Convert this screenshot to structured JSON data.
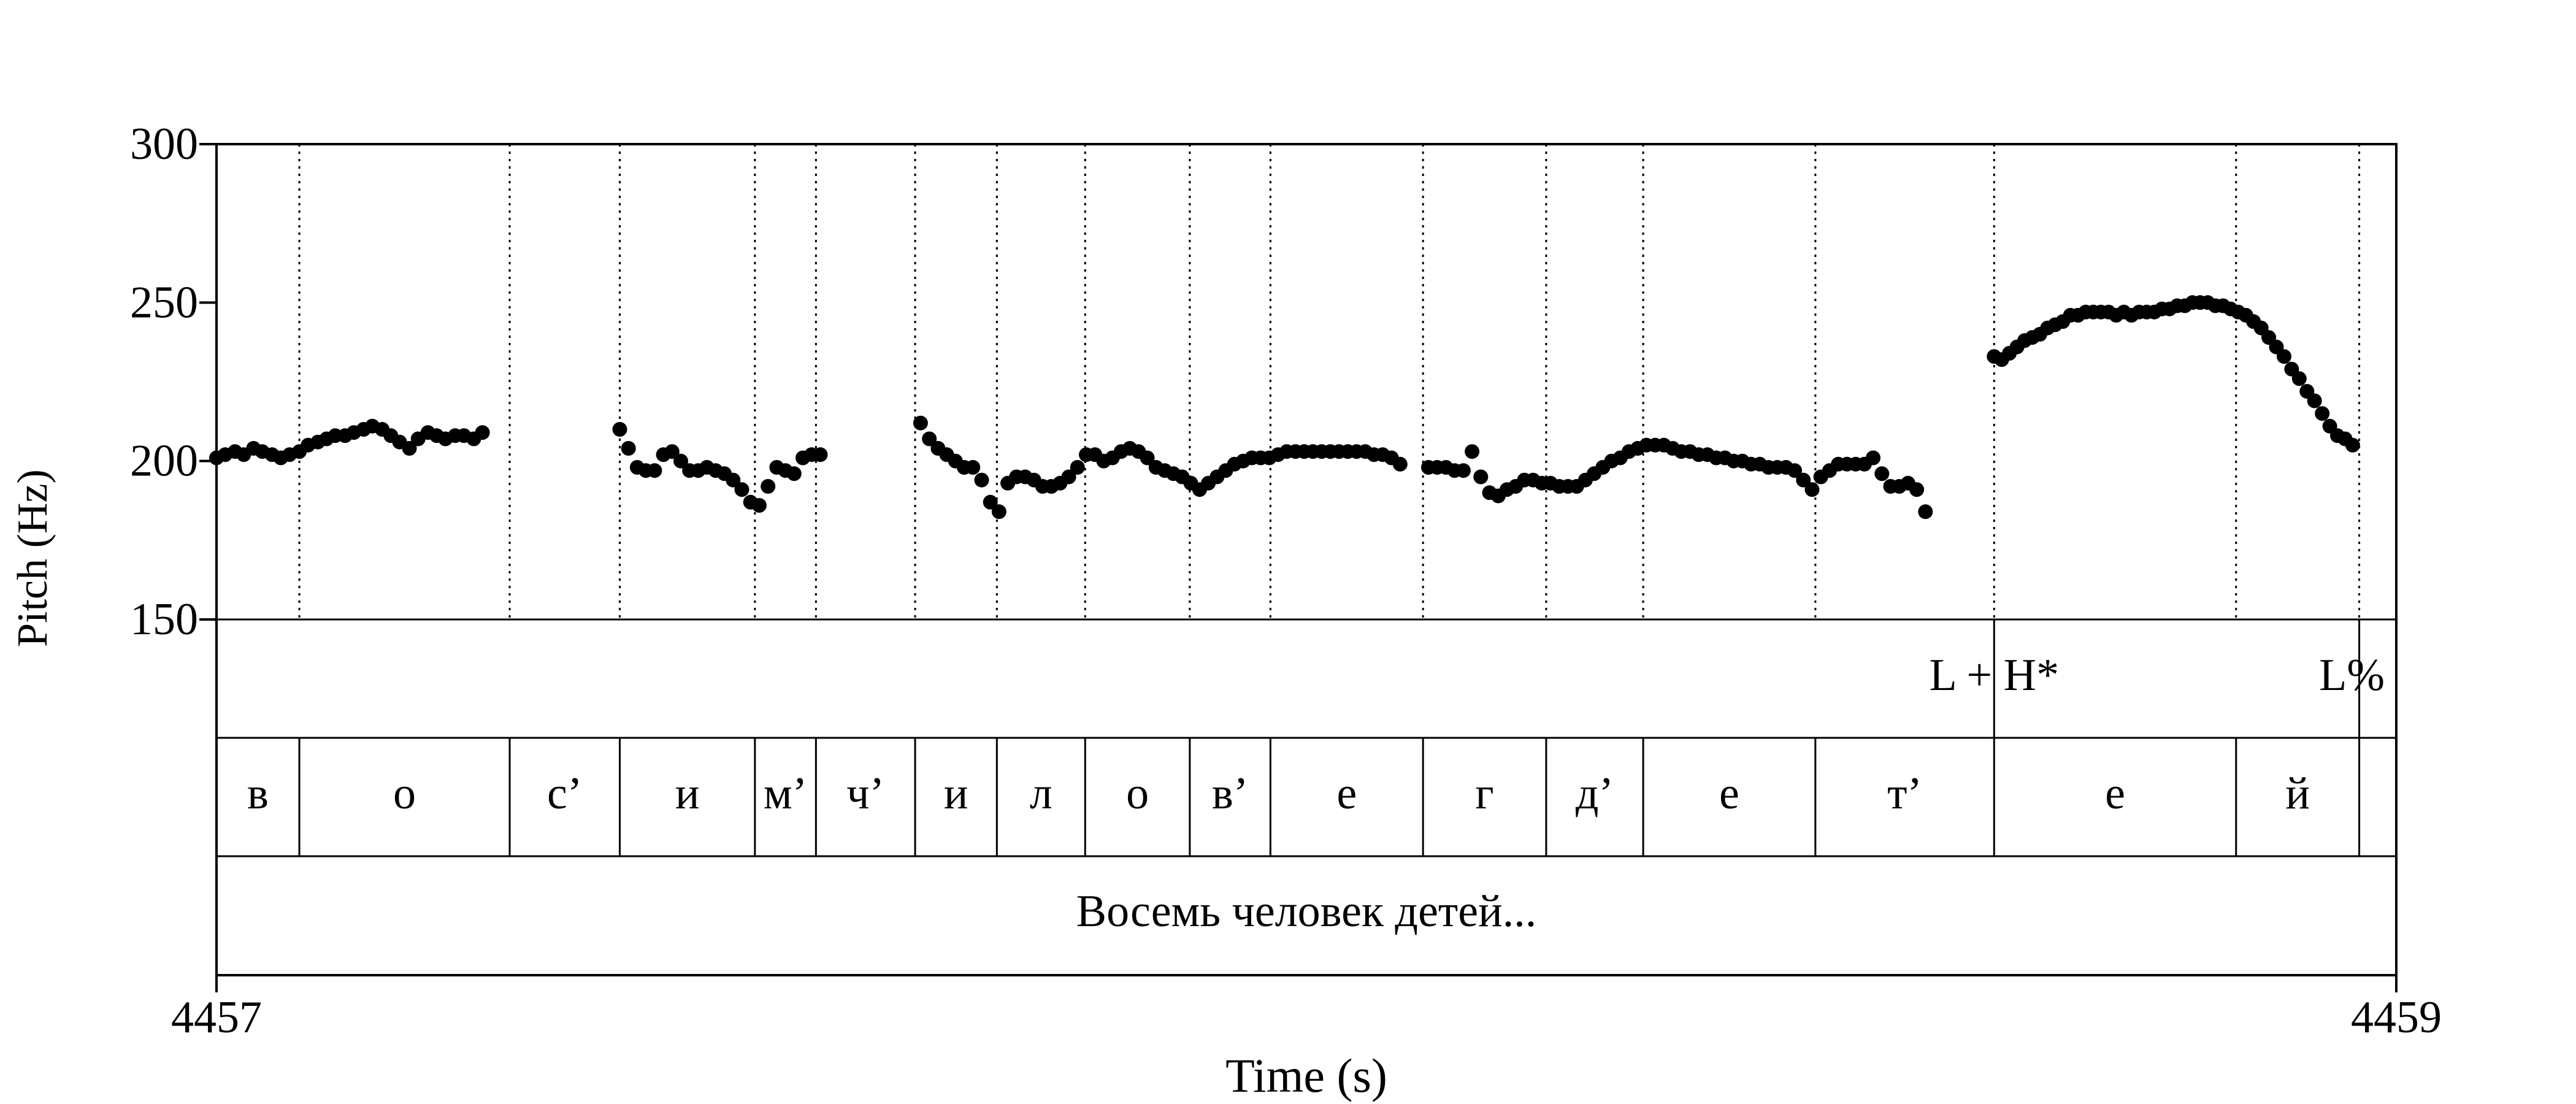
{
  "chart_data": {
    "type": "scatter",
    "title": "",
    "xlabel": "Time (s)",
    "ylabel": "Pitch (Hz)",
    "xlim": [
      4457,
      4459
    ],
    "ylim": [
      150,
      300
    ],
    "x_ticks": [
      4457,
      4459
    ],
    "y_ticks": [
      150,
      200,
      250,
      300
    ],
    "grid": false,
    "boundaries": [
      4457.076,
      4457.269,
      4457.37,
      4457.494,
      4457.55,
      4457.641,
      4457.716,
      4457.797,
      4457.893,
      4457.967,
      4458.107,
      4458.22,
      4458.309,
      4458.467,
      4458.631,
      4458.853,
      4458.966
    ],
    "tones": [
      {
        "label": "L + H*",
        "time": 4458.631
      },
      {
        "label": "L%",
        "time": 4458.966
      }
    ],
    "segments": [
      {
        "label": "в",
        "start": 4457.0,
        "end": 4457.076
      },
      {
        "label": "о",
        "start": 4457.076,
        "end": 4457.269
      },
      {
        "label": "с’",
        "start": 4457.269,
        "end": 4457.37
      },
      {
        "label": "и",
        "start": 4457.37,
        "end": 4457.494
      },
      {
        "label": "м’",
        "start": 4457.494,
        "end": 4457.55
      },
      {
        "label": "ч’",
        "start": 4457.55,
        "end": 4457.641
      },
      {
        "label": "и",
        "start": 4457.641,
        "end": 4457.716
      },
      {
        "label": "л",
        "start": 4457.716,
        "end": 4457.797
      },
      {
        "label": "о",
        "start": 4457.797,
        "end": 4457.893
      },
      {
        "label": "в’",
        "start": 4457.893,
        "end": 4457.967
      },
      {
        "label": "е",
        "start": 4457.967,
        "end": 4458.107
      },
      {
        "label": "г",
        "start": 4458.107,
        "end": 4458.22
      },
      {
        "label": "д’",
        "start": 4458.22,
        "end": 4458.309
      },
      {
        "label": "е",
        "start": 4458.309,
        "end": 4458.467
      },
      {
        "label": "т’",
        "start": 4458.467,
        "end": 4458.631
      },
      {
        "label": "е",
        "start": 4458.631,
        "end": 4458.853
      },
      {
        "label": "й",
        "start": 4458.853,
        "end": 4458.966
      }
    ],
    "utterance": "Восемь человек детей...",
    "series": [
      {
        "points": [
          [
            4457.0,
            201
          ],
          [
            4457.008,
            202
          ],
          [
            4457.017,
            203
          ],
          [
            4457.025,
            202
          ],
          [
            4457.034,
            204
          ],
          [
            4457.042,
            203
          ],
          [
            4457.051,
            202
          ],
          [
            4457.059,
            201
          ],
          [
            4457.067,
            202
          ],
          [
            4457.076,
            203
          ],
          [
            4457.084,
            205
          ],
          [
            4457.093,
            206
          ],
          [
            4457.101,
            207
          ],
          [
            4457.109,
            208
          ],
          [
            4457.118,
            208
          ],
          [
            4457.126,
            209
          ],
          [
            4457.135,
            210
          ],
          [
            4457.143,
            211
          ],
          [
            4457.152,
            210
          ],
          [
            4457.16,
            208
          ],
          [
            4457.168,
            206
          ],
          [
            4457.177,
            204
          ],
          [
            4457.185,
            207
          ],
          [
            4457.194,
            209
          ],
          [
            4457.202,
            208
          ],
          [
            4457.21,
            207
          ],
          [
            4457.219,
            208
          ],
          [
            4457.227,
            208
          ],
          [
            4457.236,
            207
          ],
          [
            4457.244,
            209
          ],
          [
            4457.37,
            210
          ],
          [
            4457.378,
            204
          ],
          [
            4457.386,
            198
          ],
          [
            4457.394,
            197
          ],
          [
            4457.402,
            197
          ],
          [
            4457.41,
            202
          ],
          [
            4457.418,
            203
          ],
          [
            4457.426,
            200
          ],
          [
            4457.434,
            197
          ],
          [
            4457.442,
            197
          ],
          [
            4457.45,
            198
          ],
          [
            4457.458,
            197
          ],
          [
            4457.466,
            196
          ],
          [
            4457.474,
            194
          ],
          [
            4457.482,
            191
          ],
          [
            4457.49,
            187
          ],
          [
            4457.498,
            186
          ],
          [
            4457.506,
            192
          ],
          [
            4457.514,
            198
          ],
          [
            4457.522,
            197
          ],
          [
            4457.53,
            196
          ],
          [
            4457.538,
            201
          ],
          [
            4457.546,
            202
          ],
          [
            4457.554,
            202
          ],
          [
            4457.646,
            212
          ],
          [
            4457.654,
            207
          ],
          [
            4457.662,
            204
          ],
          [
            4457.67,
            202
          ],
          [
            4457.678,
            200
          ],
          [
            4457.686,
            198
          ],
          [
            4457.694,
            198
          ],
          [
            4457.702,
            194
          ],
          [
            4457.71,
            187
          ],
          [
            4457.718,
            184
          ],
          [
            4457.726,
            193
          ],
          [
            4457.734,
            195
          ],
          [
            4457.742,
            195
          ],
          [
            4457.75,
            194
          ],
          [
            4457.758,
            192
          ],
          [
            4457.766,
            192
          ],
          [
            4457.774,
            193
          ],
          [
            4457.782,
            195
          ],
          [
            4457.79,
            198
          ],
          [
            4457.798,
            202
          ],
          [
            4457.806,
            202
          ],
          [
            4457.814,
            200
          ],
          [
            4457.822,
            201
          ],
          [
            4457.83,
            203
          ],
          [
            4457.838,
            204
          ],
          [
            4457.846,
            203
          ],
          [
            4457.854,
            201
          ],
          [
            4457.862,
            198
          ],
          [
            4457.87,
            197
          ],
          [
            4457.878,
            196
          ],
          [
            4457.886,
            195
          ],
          [
            4457.894,
            193
          ],
          [
            4457.902,
            191
          ],
          [
            4457.91,
            193
          ],
          [
            4457.918,
            195
          ],
          [
            4457.926,
            197
          ],
          [
            4457.934,
            199
          ],
          [
            4457.942,
            200
          ],
          [
            4457.95,
            201
          ],
          [
            4457.958,
            201
          ],
          [
            4457.966,
            201
          ],
          [
            4457.974,
            202
          ],
          [
            4457.982,
            203
          ],
          [
            4457.99,
            203
          ],
          [
            4457.998,
            203
          ],
          [
            4458.006,
            203
          ],
          [
            4458.014,
            203
          ],
          [
            4458.022,
            203
          ],
          [
            4458.03,
            203
          ],
          [
            4458.038,
            203
          ],
          [
            4458.046,
            203
          ],
          [
            4458.054,
            203
          ],
          [
            4458.062,
            202
          ],
          [
            4458.07,
            202
          ],
          [
            4458.078,
            201
          ],
          [
            4458.086,
            199
          ],
          [
            4458.112,
            198
          ],
          [
            4458.12,
            198
          ],
          [
            4458.128,
            198
          ],
          [
            4458.136,
            197
          ],
          [
            4458.144,
            197
          ],
          [
            4458.152,
            203
          ],
          [
            4458.16,
            195
          ],
          [
            4458.168,
            190
          ],
          [
            4458.176,
            189
          ],
          [
            4458.184,
            191
          ],
          [
            4458.192,
            192
          ],
          [
            4458.2,
            194
          ],
          [
            4458.208,
            194
          ],
          [
            4458.216,
            193
          ],
          [
            4458.224,
            193
          ],
          [
            4458.232,
            192
          ],
          [
            4458.24,
            192
          ],
          [
            4458.248,
            192
          ],
          [
            4458.256,
            194
          ],
          [
            4458.264,
            196
          ],
          [
            4458.272,
            198
          ],
          [
            4458.28,
            200
          ],
          [
            4458.288,
            201
          ],
          [
            4458.296,
            203
          ],
          [
            4458.304,
            204
          ],
          [
            4458.312,
            205
          ],
          [
            4458.32,
            205
          ],
          [
            4458.328,
            205
          ],
          [
            4458.336,
            204
          ],
          [
            4458.344,
            203
          ],
          [
            4458.352,
            203
          ],
          [
            4458.36,
            202
          ],
          [
            4458.368,
            202
          ],
          [
            4458.376,
            201
          ],
          [
            4458.384,
            201
          ],
          [
            4458.392,
            200
          ],
          [
            4458.4,
            200
          ],
          [
            4458.408,
            199
          ],
          [
            4458.416,
            199
          ],
          [
            4458.424,
            198
          ],
          [
            4458.432,
            198
          ],
          [
            4458.44,
            198
          ],
          [
            4458.448,
            197
          ],
          [
            4458.456,
            194
          ],
          [
            4458.464,
            191
          ],
          [
            4458.472,
            195
          ],
          [
            4458.48,
            197
          ],
          [
            4458.488,
            199
          ],
          [
            4458.496,
            199
          ],
          [
            4458.504,
            199
          ],
          [
            4458.512,
            199
          ],
          [
            4458.52,
            201
          ],
          [
            4458.528,
            196
          ],
          [
            4458.536,
            192
          ],
          [
            4458.544,
            192
          ],
          [
            4458.552,
            193
          ],
          [
            4458.56,
            191
          ],
          [
            4458.568,
            184
          ],
          [
            4458.631,
            233
          ],
          [
            4458.638,
            232
          ],
          [
            4458.645,
            234
          ],
          [
            4458.652,
            236
          ],
          [
            4458.659,
            238
          ],
          [
            4458.666,
            239
          ],
          [
            4458.673,
            240
          ],
          [
            4458.68,
            242
          ],
          [
            4458.687,
            243
          ],
          [
            4458.694,
            244
          ],
          [
            4458.701,
            246
          ],
          [
            4458.708,
            246
          ],
          [
            4458.715,
            247
          ],
          [
            4458.722,
            247
          ],
          [
            4458.729,
            247
          ],
          [
            4458.736,
            247
          ],
          [
            4458.743,
            246
          ],
          [
            4458.75,
            247
          ],
          [
            4458.757,
            246
          ],
          [
            4458.764,
            247
          ],
          [
            4458.771,
            247
          ],
          [
            4458.778,
            247
          ],
          [
            4458.785,
            248
          ],
          [
            4458.792,
            248
          ],
          [
            4458.799,
            249
          ],
          [
            4458.806,
            249
          ],
          [
            4458.813,
            250
          ],
          [
            4458.82,
            250
          ],
          [
            4458.827,
            250
          ],
          [
            4458.834,
            249
          ],
          [
            4458.841,
            249
          ],
          [
            4458.848,
            248
          ],
          [
            4458.855,
            247
          ],
          [
            4458.862,
            246
          ],
          [
            4458.869,
            244
          ],
          [
            4458.876,
            242
          ],
          [
            4458.883,
            239
          ],
          [
            4458.89,
            236
          ],
          [
            4458.897,
            233
          ],
          [
            4458.904,
            229
          ],
          [
            4458.911,
            226
          ],
          [
            4458.918,
            222
          ],
          [
            4458.925,
            219
          ],
          [
            4458.932,
            215
          ],
          [
            4458.939,
            211
          ],
          [
            4458.946,
            208
          ],
          [
            4458.953,
            207
          ],
          [
            4458.96,
            205
          ]
        ]
      }
    ]
  }
}
